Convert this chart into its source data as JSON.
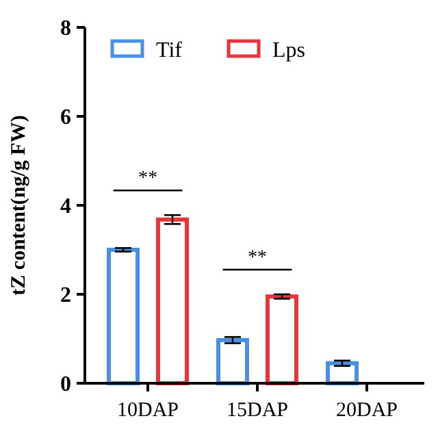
{
  "chart_data": {
    "type": "bar",
    "ylabel": "tZ content(ng/g FW)",
    "categories": [
      "10DAP",
      "15DAP",
      "20DAP"
    ],
    "series": [
      {
        "name": "Tif",
        "color": "#4a90e2",
        "values": [
          3.0,
          0.97,
          0.45
        ],
        "errors": [
          0.04,
          0.07,
          0.06
        ]
      },
      {
        "name": "Lps",
        "color": "#e8343c",
        "values": [
          3.68,
          1.95,
          null
        ],
        "errors": [
          0.1,
          0.05,
          null
        ]
      }
    ],
    "ylim": [
      0,
      8
    ],
    "yticks": [
      0,
      2,
      4,
      6,
      8
    ],
    "legend": "top left",
    "grid": false,
    "annotations": [
      "**",
      "**"
    ]
  }
}
